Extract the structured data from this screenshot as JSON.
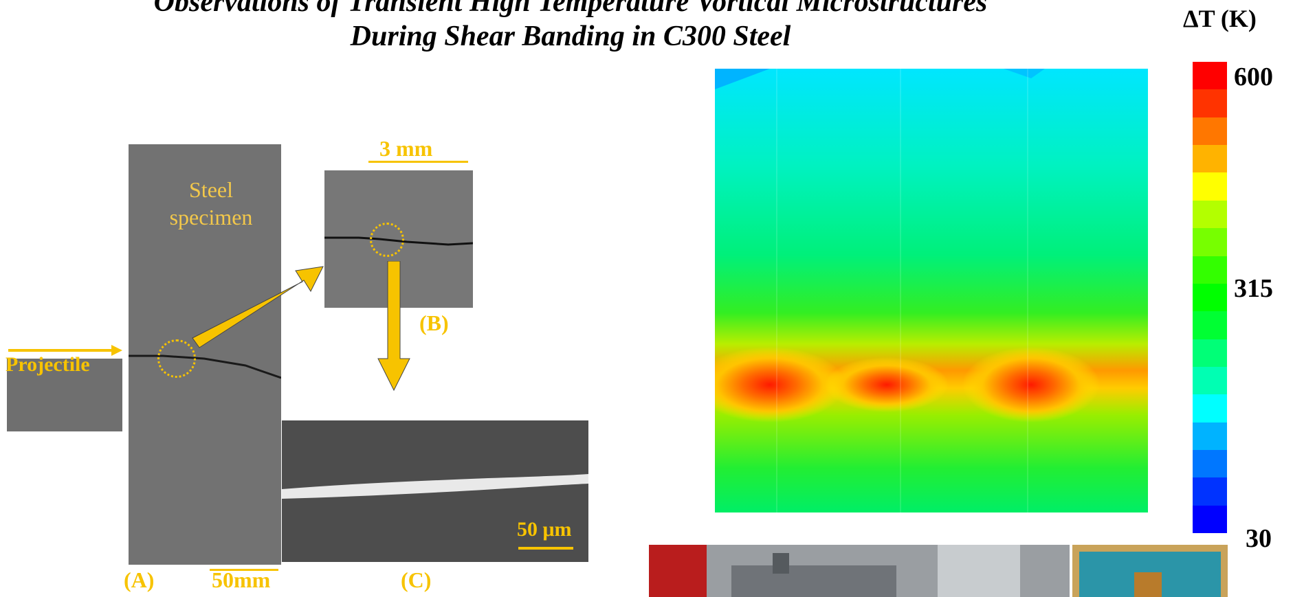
{
  "title": {
    "line1": "Observations of Transient High Temperature Vortical Microstructures",
    "line2": "During Shear Banding in C300 Steel"
  },
  "colorbar": {
    "label": "ΔT (K)",
    "ticks": [
      "600",
      "315",
      "30"
    ],
    "colors": [
      "#ff0000",
      "#ff3300",
      "#ff7700",
      "#ffb300",
      "#ffff00",
      "#b3ff00",
      "#77ff00",
      "#33ff00",
      "#00ff00",
      "#00ff33",
      "#00ff77",
      "#00ffb3",
      "#00ffff",
      "#00b3ff",
      "#0077ff",
      "#0033ff",
      "#0000ff"
    ]
  },
  "figure_labels": {
    "specimen": "Steel specimen",
    "specimen_line1": "Steel",
    "specimen_line2": "specimen",
    "projectile": "Projectile",
    "scale_3mm": "3 mm",
    "scale_50mm": "50mm",
    "scale_50um": "50 μm",
    "label_a": "(A)",
    "label_b": "(B)",
    "label_c": "(C)"
  },
  "colors": {
    "accent_yellow": "#f7c300",
    "photo_gray": "#6e6e6e"
  }
}
